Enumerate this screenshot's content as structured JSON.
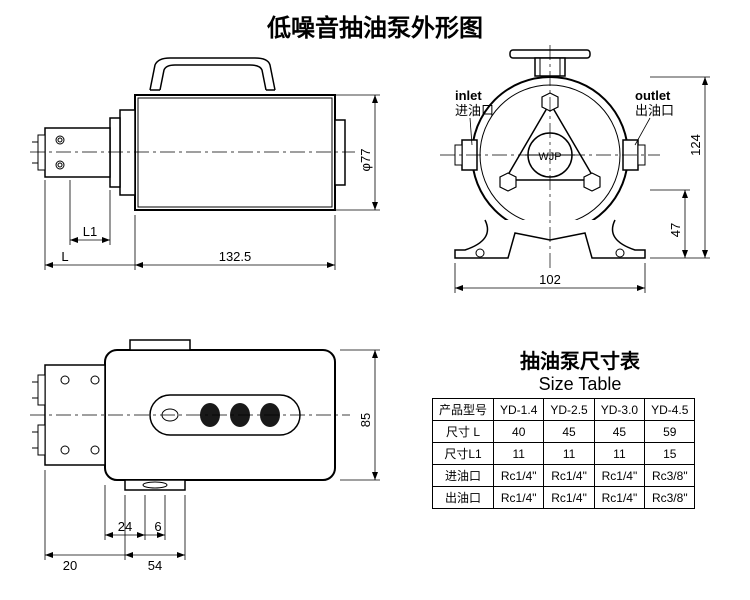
{
  "title": "低噪音抽油泵外形图",
  "side_view": {
    "diameter": "φ77",
    "body_length": "132.5",
    "dim_L": "L",
    "dim_L1": "L1"
  },
  "front_view": {
    "inlet_en": "inlet",
    "inlet_cn": "进油口",
    "outlet_en": "outlet",
    "outlet_cn": "出油口",
    "brand": "WJP",
    "width": "102",
    "height_47": "47",
    "height_124": "124"
  },
  "top_view": {
    "height_85": "85",
    "dim_20": "20",
    "dim_24": "24",
    "dim_6": "6",
    "dim_54": "54"
  },
  "size_table": {
    "title_cn": "抽油泵尺寸表",
    "title_en": "Size Table",
    "header": [
      "产品型号",
      "YD-1.4",
      "YD-2.5",
      "YD-3.0",
      "YD-4.5"
    ],
    "rows": [
      [
        "尺寸 L",
        "40",
        "45",
        "45",
        "59"
      ],
      [
        "尺寸L1",
        "11",
        "11",
        "11",
        "15"
      ],
      [
        "进油口",
        "Rc1/4\"",
        "Rc1/4\"",
        "Rc1/4\"",
        "Rc3/8\""
      ],
      [
        "出油口",
        "Rc1/4\"",
        "Rc1/4\"",
        "Rc1/4\"",
        "Rc3/8\""
      ]
    ]
  }
}
